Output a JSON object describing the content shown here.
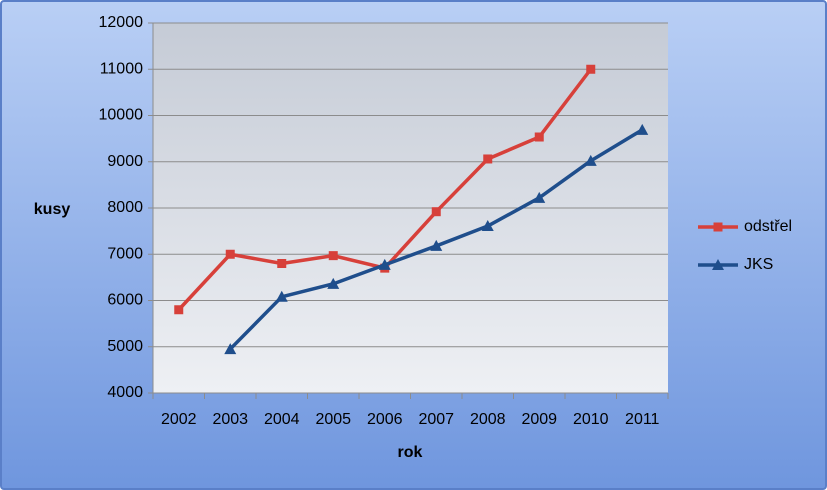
{
  "chart_data": {
    "type": "line",
    "x_label": "rok",
    "y_label": "kusy",
    "categories": [
      "2002",
      "2003",
      "2004",
      "2005",
      "2006",
      "2007",
      "2008",
      "2009",
      "2010",
      "2011"
    ],
    "series": [
      {
        "name": "odstřel",
        "color": "#d7403a",
        "marker": "square",
        "values": [
          5800,
          7000,
          6800,
          6970,
          6700,
          7920,
          9060,
          9535,
          11000,
          null
        ]
      },
      {
        "name": "JKS",
        "color": "#1f4e8c",
        "marker": "triangle",
        "values": [
          null,
          4950,
          6080,
          6360,
          6770,
          7180,
          7610,
          8220,
          9020,
          9690
        ]
      }
    ],
    "ylim": [
      4000,
      12000
    ],
    "yticks": [
      4000,
      5000,
      6000,
      7000,
      8000,
      9000,
      10000,
      11000,
      12000
    ],
    "grid": true,
    "legend": "right"
  }
}
